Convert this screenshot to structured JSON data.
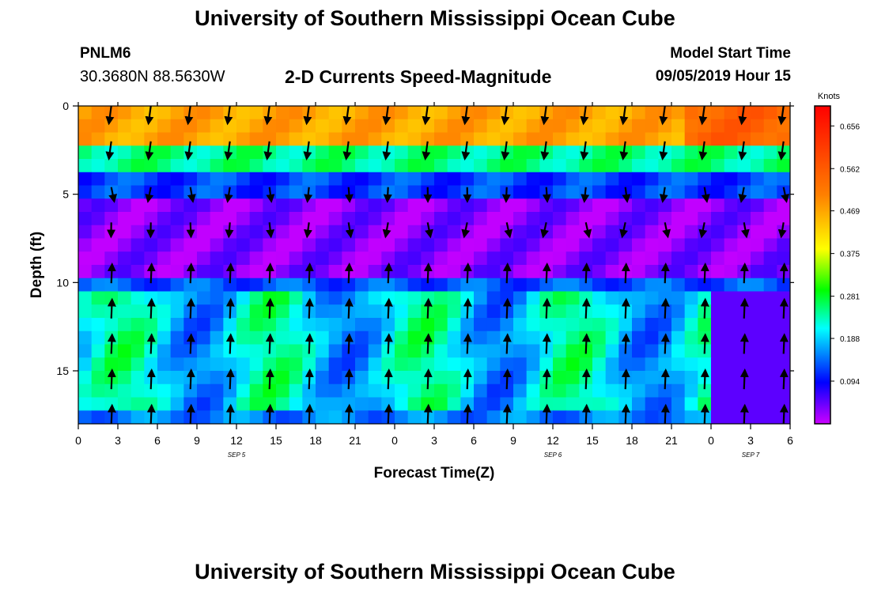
{
  "header": {
    "title": "University of Southern Mississippi Ocean Cube",
    "station_id": "PNLM6",
    "station_coords": "30.3680N 88.5630W",
    "chart_title": "2-D Currents Speed-Magnitude",
    "model_label": "Model Start Time",
    "model_time": "09/05/2019 Hour 15"
  },
  "footer": {
    "title": "University of Southern Mississippi Ocean Cube"
  },
  "chart_data": {
    "type": "heatmap",
    "title": "2-D Currents Speed-Magnitude",
    "xlabel": "Forecast Time(Z)",
    "ylabel": "Depth (ft)",
    "xlim": [
      0,
      54
    ],
    "ylim": [
      0,
      18
    ],
    "y_inverted": true,
    "x_ticks": [
      0,
      3,
      6,
      9,
      12,
      15,
      18,
      21,
      24,
      27,
      30,
      33,
      36,
      39,
      42,
      45,
      48,
      51,
      54
    ],
    "x_tick_labels": [
      "0",
      "3",
      "6",
      "9",
      "12",
      "15",
      "18",
      "21",
      "0",
      "3",
      "6",
      "9",
      "12",
      "15",
      "18",
      "21",
      "0",
      "3",
      "6"
    ],
    "y_ticks": [
      0,
      5,
      10,
      15
    ],
    "y_tick_labels": [
      "0",
      "5",
      "10",
      "15"
    ],
    "date_labels": [
      {
        "x": 12,
        "text": "SEP 5"
      },
      {
        "x": 36,
        "text": "SEP 6"
      },
      {
        "x": 51,
        "text": "SEP 7"
      }
    ],
    "colorbar": {
      "unit": "Knots",
      "range": [
        0,
        0.7
      ],
      "ticks": [
        0.656,
        0.562,
        0.469,
        0.375,
        0.281,
        0.188,
        0.094
      ],
      "tick_labels": [
        "0.656",
        "0.562",
        "0.469",
        "0.375",
        "0.281",
        "0.188",
        "0.094"
      ]
    },
    "depths": [
      0,
      0.75,
      1.5,
      2.25,
      3,
      3.75,
      4.5,
      5.25,
      6,
      6.75,
      7.5,
      8.25,
      9,
      9.75,
      10.5,
      11.25,
      12,
      12.75,
      13.5,
      14.25,
      15,
      15.75,
      16.5,
      17.25
    ],
    "times": [
      0,
      1,
      2,
      3,
      4,
      5,
      6,
      7,
      8,
      9,
      10,
      11,
      12,
      13,
      14,
      15,
      16,
      17,
      18,
      19,
      20,
      21,
      22,
      23,
      24,
      25,
      26,
      27,
      28,
      29,
      30,
      31,
      32,
      33,
      34,
      35,
      36,
      37,
      38,
      39,
      40,
      41,
      42,
      43,
      44,
      45,
      46,
      47,
      48,
      49,
      50,
      51,
      52,
      53
    ],
    "speed_bands": [
      {
        "depth": [
          0,
          2.0
        ],
        "base": 0.47
      },
      {
        "depth": [
          2.0,
          3.5
        ],
        "base": 0.25
      },
      {
        "depth": [
          3.5,
          5.0
        ],
        "base": 0.12
      },
      {
        "depth": [
          5.0,
          9.5
        ],
        "base": 0.03
      },
      {
        "depth": [
          9.5,
          10.5
        ],
        "base": 0.13
      },
      {
        "depth": [
          10.5,
          17.0
        ],
        "base": 0.2
      },
      {
        "depth": [
          17.0,
          18.0
        ],
        "base": 0.15
      }
    ],
    "arrow_times": [
      2.5,
      5.5,
      8.5,
      11.5,
      14.5,
      17.5,
      20.5,
      23.5,
      26.5,
      29.5,
      32.5,
      35.5,
      38.5,
      41.5,
      44.5,
      47.5,
      50.5,
      53.5
    ],
    "arrow_depths": [
      0.5,
      2.5,
      5.0,
      7.0,
      9.5,
      11.5,
      13.5,
      15.5,
      17.5
    ]
  }
}
